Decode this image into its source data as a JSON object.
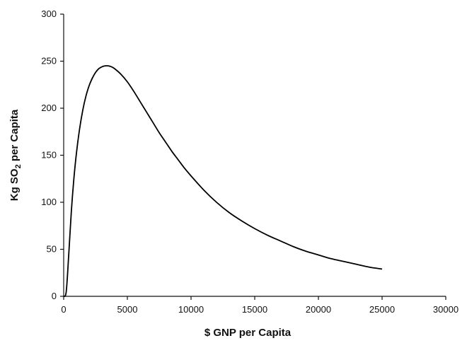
{
  "chart_data": {
    "type": "line",
    "title": "",
    "xlabel": "$ GNP per Capita",
    "ylabel": {
      "prefix": "Kg SO",
      "subscript": "2",
      "suffix": " per Capita"
    },
    "xlim": [
      0,
      30000
    ],
    "ylim": [
      0,
      300
    ],
    "xticks": [
      0,
      5000,
      10000,
      15000,
      20000,
      25000,
      30000
    ],
    "yticks": [
      0,
      50,
      100,
      150,
      200,
      250,
      300
    ],
    "grid": false,
    "legend": "none",
    "series": [
      {
        "x": [
          0,
          200,
          400,
          600,
          800,
          1000,
          1250,
          1500,
          1750,
          2000,
          2250,
          2500,
          2750,
          3000,
          3250,
          3500,
          3750,
          4000,
          4500,
          5000,
          5500,
          6000,
          6500,
          7000,
          7500,
          8000,
          8500,
          9000,
          9500,
          10000,
          11000,
          12000,
          13000,
          14000,
          15000,
          16000,
          17000,
          18000,
          19000,
          20000,
          21000,
          22000,
          23000,
          24000,
          25000
        ],
        "y": [
          0,
          5,
          45,
          90,
          125,
          152,
          178,
          198,
          213,
          224,
          232,
          238,
          242,
          244,
          245,
          245,
          244,
          242,
          236,
          228,
          218,
          207,
          196,
          185,
          174,
          164,
          154,
          145,
          136,
          128,
          113,
          100,
          89,
          80,
          72,
          65,
          59,
          53,
          48,
          44,
          40,
          37,
          34,
          31,
          29
        ]
      }
    ]
  }
}
